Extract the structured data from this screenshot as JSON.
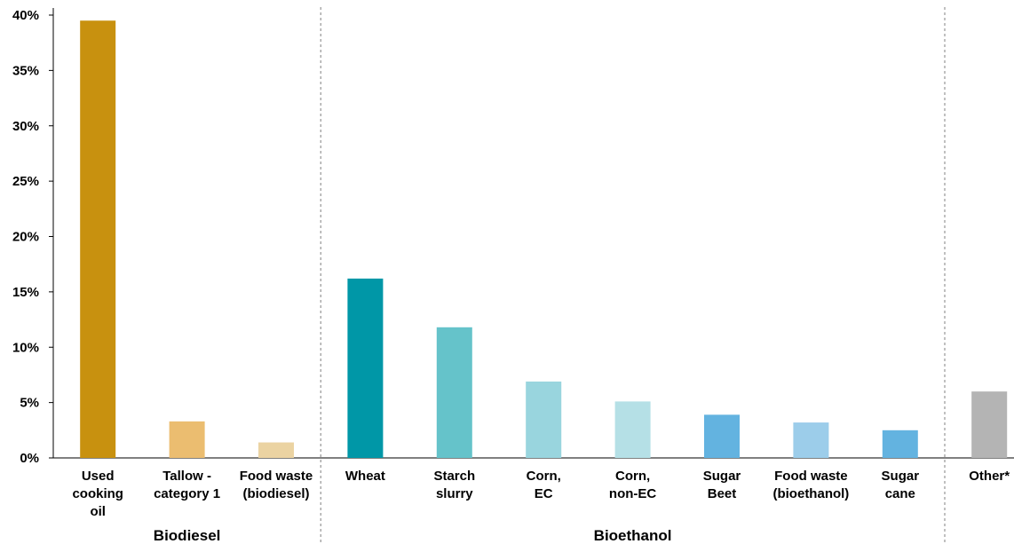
{
  "chart_data": {
    "type": "bar",
    "title": "",
    "xlabel": "",
    "ylabel": "",
    "ylim": [
      0,
      40
    ],
    "yticks": [
      "0%",
      "5%",
      "10%",
      "15%",
      "20%",
      "25%",
      "30%",
      "35%",
      "40%"
    ],
    "grid": false,
    "categories": [
      [
        "Used",
        "cooking",
        "oil"
      ],
      [
        "Tallow -",
        "category 1"
      ],
      [
        "Food waste",
        "(biodiesel)"
      ],
      [
        "Wheat"
      ],
      [
        "Starch",
        "slurry"
      ],
      [
        "Corn,",
        "EC"
      ],
      [
        "Corn,",
        "non-EC"
      ],
      [
        "Sugar",
        "Beet"
      ],
      [
        "Food waste",
        "(bioethanol)"
      ],
      [
        "Sugar",
        "cane"
      ],
      [
        "Other*"
      ]
    ],
    "values": [
      39.5,
      3.3,
      1.4,
      16.2,
      11.8,
      6.9,
      5.1,
      3.9,
      3.2,
      2.5,
      6.0
    ],
    "colors": [
      "#c8910f",
      "#ebbd70",
      "#ebd3a2",
      "#0097a7",
      "#65c3ca",
      "#99d5de",
      "#b5e0e6",
      "#63b3e0",
      "#9ccdea",
      "#63b3e0",
      "#b4b4b4"
    ],
    "groups": [
      {
        "label": "Biodiesel",
        "start": 0,
        "end": 2
      },
      {
        "label": "Bioethanol",
        "start": 3,
        "end": 9
      },
      {
        "label": "",
        "start": 10,
        "end": 10
      }
    ]
  }
}
